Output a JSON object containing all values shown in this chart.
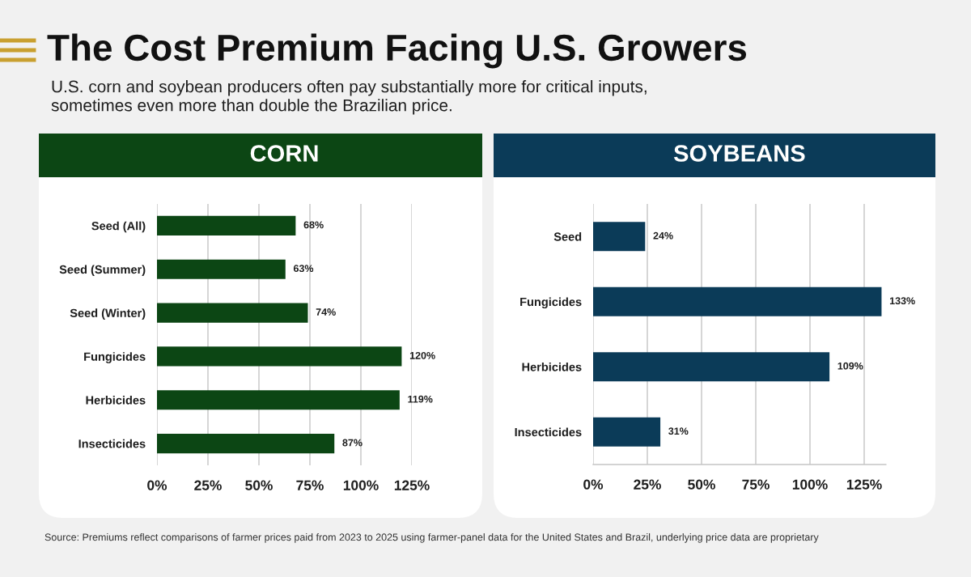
{
  "chart_data": [
    {
      "type": "other",
      "title": "The Cost Premium Facing U.S. Growers",
      "subtitle": "U.S. corn and soybean producers often pay substantially more for critical inputs, sometimes even more than double the Brazilian price.",
      "annotations": [
        "Source: Premiums reflect comparisons of farmer prices paid from 2023 to 2025 using farmer-panel data for the United States and Brazil, underlying price data are proprietary"
      ]
    },
    {
      "type": "bar",
      "orientation": "horizontal",
      "title": "CORN",
      "categories": [
        "Seed (All)",
        "Seed (Summer)",
        "Seed (Winter)",
        "Fungicides",
        "Herbicides",
        "Insecticides"
      ],
      "values": [
        68,
        63,
        74,
        120,
        119,
        87
      ],
      "value_labels": [
        "68%",
        "63%",
        "74%",
        "120%",
        "119%",
        "87%"
      ],
      "color": "#0c4614",
      "xlim": [
        0,
        125
      ],
      "xticks": [
        {
          "value": 0,
          "label": "0%"
        },
        {
          "value": 25,
          "label": "25%"
        },
        {
          "value": 50,
          "label": "50%"
        },
        {
          "value": 75,
          "label": "75%"
        },
        {
          "value": 100,
          "label": "100%"
        },
        {
          "value": 125,
          "label": "125%"
        }
      ],
      "grid": "x"
    },
    {
      "type": "bar",
      "orientation": "horizontal",
      "title": "SOYBEANS",
      "categories": [
        "Seed",
        "Fungicides",
        "Herbicides",
        "Insecticides"
      ],
      "values": [
        24,
        133,
        109,
        31
      ],
      "value_labels": [
        "24%",
        "133%",
        "109%",
        "31%"
      ],
      "color": "#0b3b58",
      "xlim": [
        0,
        135
      ],
      "xticks": [
        {
          "value": 0,
          "label": "0%"
        },
        {
          "value": 25,
          "label": "25%"
        },
        {
          "value": 50,
          "label": "50%"
        },
        {
          "value": 75,
          "label": "75%"
        },
        {
          "value": 100,
          "label": "100%"
        },
        {
          "value": 125,
          "label": "125%"
        }
      ],
      "grid": "x"
    }
  ]
}
